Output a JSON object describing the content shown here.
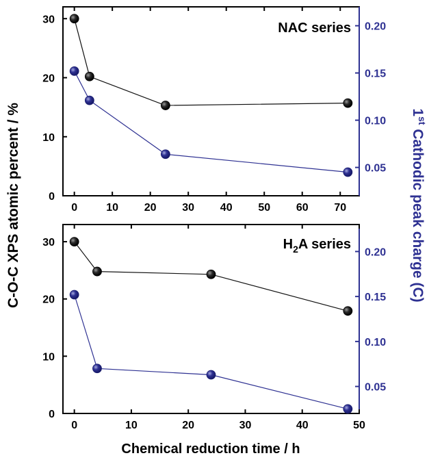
{
  "colors": {
    "black_series": "#111111",
    "blue_series": "#2e3192",
    "axis": "#000000",
    "right_axis": "#2e3192"
  },
  "labels": {
    "ylabel_left": "C-O-C XPS atomic percent / %",
    "ylabel_right_sup": "st",
    "ylabel_right_pre": "1",
    "ylabel_right_rest": " Cathodic peak charge (C)",
    "xlabel": "Chemical reduction time / h"
  },
  "chart_data": [
    {
      "type": "line",
      "title": "NAC series",
      "title_parts": {
        "pre": "NAC series",
        "sub": "",
        "post": ""
      },
      "xlim": [
        -3,
        75
      ],
      "xticks": [
        0,
        10,
        20,
        30,
        40,
        50,
        60,
        70
      ],
      "ylim_left": [
        0,
        32
      ],
      "yticks_left": [
        0,
        10,
        20,
        30
      ],
      "ylim_right": [
        0.02,
        0.22
      ],
      "yticks_right": [
        0.05,
        0.1,
        0.15,
        0.2
      ],
      "series": [
        {
          "axis": "left",
          "x": [
            0,
            4,
            24,
            72
          ],
          "y": [
            30.0,
            20.2,
            15.3,
            15.7
          ]
        },
        {
          "axis": "right",
          "x": [
            0,
            4,
            24,
            72
          ],
          "y": [
            0.152,
            0.121,
            0.064,
            0.045
          ]
        }
      ]
    },
    {
      "type": "line",
      "title": "H2A series",
      "title_parts": {
        "pre": "H",
        "sub": "2",
        "post": "A series"
      },
      "xlim": [
        -2,
        50
      ],
      "xticks": [
        0,
        10,
        20,
        30,
        40,
        50
      ],
      "ylim_left": [
        0,
        33
      ],
      "yticks_left": [
        0,
        10,
        20,
        30
      ],
      "ylim_right": [
        0.02,
        0.23
      ],
      "yticks_right": [
        0.05,
        0.1,
        0.15,
        0.2
      ],
      "series": [
        {
          "axis": "left",
          "x": [
            0,
            4,
            24,
            48
          ],
          "y": [
            30.0,
            24.8,
            24.3,
            17.9
          ]
        },
        {
          "axis": "right",
          "x": [
            0,
            4,
            24,
            48
          ],
          "y": [
            0.152,
            0.07,
            0.063,
            0.025
          ]
        }
      ]
    }
  ]
}
